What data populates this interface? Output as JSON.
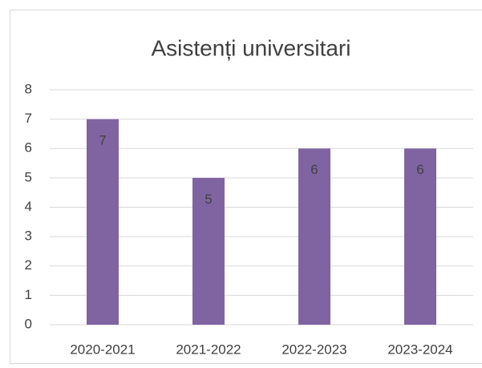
{
  "chart_data": {
    "type": "bar",
    "title": "Asistenți universitari",
    "categories": [
      "2020-2021",
      "2021-2022",
      "2022-2023",
      "2023-2024"
    ],
    "values": [
      7,
      5,
      6,
      6
    ],
    "color": "#8064a2",
    "ylim": [
      0,
      8
    ],
    "yticks": [
      0,
      1,
      2,
      3,
      4,
      5,
      6,
      7,
      8
    ],
    "grid": true
  }
}
